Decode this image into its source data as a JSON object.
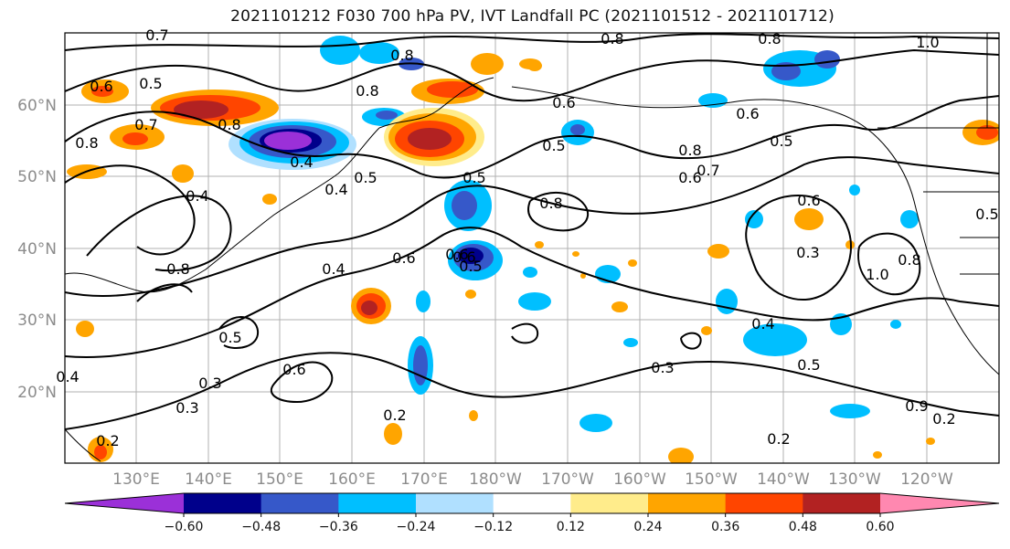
{
  "title": "2021101212 F030 700 hPa PV, IVT Landfall PC (2021101512 - 2021101712)",
  "lat_labels": [
    "60°N",
    "50°N",
    "40°N",
    "30°N",
    "20°N"
  ],
  "lon_labels": [
    "130°E",
    "140°E",
    "150°E",
    "160°E",
    "170°E",
    "180°W",
    "170°W",
    "160°W",
    "150°W",
    "140°W",
    "130°W",
    "120°W"
  ],
  "colorbar": {
    "colors": [
      "#9b30d8",
      "#00008b",
      "#3658c9",
      "#00bfff",
      "#b0e0ff",
      "#ffffff",
      "#ffec8b",
      "#ffa500",
      "#ff4500",
      "#b22222",
      "#ff88b0"
    ],
    "ticks": [
      "−0.60",
      "−0.48",
      "−0.36",
      "−0.24",
      "−0.12",
      "0.12",
      "0.24",
      "0.36",
      "0.48",
      "0.60"
    ]
  },
  "contour_labels": [
    "0.7",
    "0.8",
    "0.8",
    "1.0",
    "0.6",
    "0.5",
    "0.7",
    "0.8",
    "0.8",
    "0.6",
    "0.8",
    "0.5",
    "0.5",
    "0.6",
    "0.8",
    "0.8",
    "0.4",
    "0.5",
    "0.7",
    "0.5",
    "0.4",
    "0.4",
    "0.6",
    "0.8",
    "0.6",
    "0.5",
    "0.8",
    "0.4",
    "0.6",
    "0.6",
    "0.5",
    "0.3",
    "1.0",
    "0.6",
    "0.8",
    "0.4",
    "0.5",
    "0.3",
    "0.5",
    "0.6",
    "0.3",
    "0.3",
    "0.4",
    "0.2",
    "0.2",
    "0.2",
    "0.2",
    "0.9"
  ]
}
